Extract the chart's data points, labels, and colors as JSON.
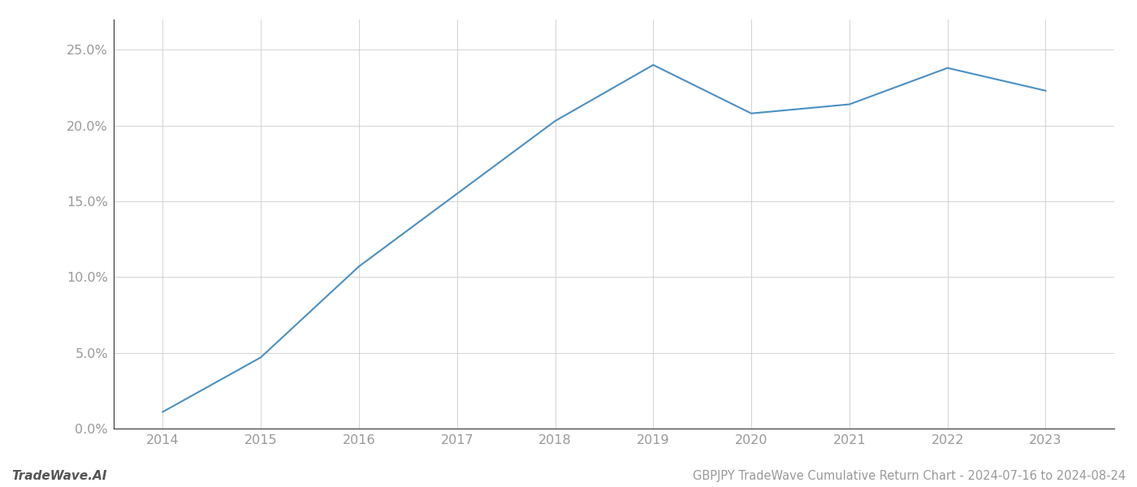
{
  "x_years": [
    2014,
    2015,
    2016,
    2017,
    2018,
    2019,
    2020,
    2021,
    2022,
    2023
  ],
  "y_values": [
    1.1,
    4.7,
    10.7,
    15.5,
    20.3,
    24.0,
    20.8,
    21.4,
    23.8,
    22.3
  ],
  "line_color": "#4a90c4",
  "line_width": 1.5,
  "title": "GBPJPY TradeWave Cumulative Return Chart - 2024-07-16 to 2024-08-24",
  "watermark": "TradeWave.AI",
  "ylim": [
    0,
    27
  ],
  "yticks": [
    0.0,
    5.0,
    10.0,
    15.0,
    20.0,
    25.0
  ],
  "xticks": [
    2014,
    2015,
    2016,
    2017,
    2018,
    2019,
    2020,
    2021,
    2022,
    2023
  ],
  "grid_color": "#cccccc",
  "background_color": "#ffffff",
  "tick_label_color": "#999999",
  "title_color": "#999999",
  "watermark_color": "#555555",
  "title_fontsize": 10.5,
  "watermark_fontsize": 11,
  "tick_fontsize": 11.5
}
